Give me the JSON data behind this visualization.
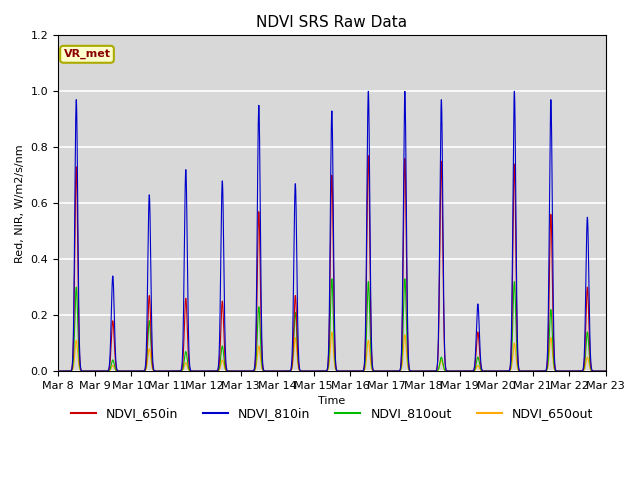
{
  "title": "NDVI SRS Raw Data",
  "ylabel": "Red, NIR, W/m2/s/nm",
  "xlabel": "Time",
  "annotation_text": "VR_met",
  "ylim": [
    0,
    1.2
  ],
  "series": {
    "NDVI_650in": {
      "color": "#cc0000",
      "lw": 0.8
    },
    "NDVI_810in": {
      "color": "#0000cc",
      "lw": 0.8
    },
    "NDVI_810out": {
      "color": "#00bb00",
      "lw": 0.8
    },
    "NDVI_650out": {
      "color": "#ffaa00",
      "lw": 0.8
    }
  },
  "tick_labels": [
    "Mar 8",
    "Mar 9",
    "Mar 10",
    "Mar 11",
    "Mar 12",
    "Mar 13",
    "Mar 14",
    "Mar 15",
    "Mar 16",
    "Mar 17",
    "Mar 18",
    "Mar 19",
    "Mar 20",
    "Mar 21",
    "Mar 22",
    "Mar 23"
  ],
  "background_color": "#d8d8d8",
  "grid_color": "#ffffff",
  "title_fontsize": 11,
  "axis_fontsize": 8,
  "legend_fontsize": 9,
  "peak_810in": [
    0.97,
    0.34,
    0.63,
    0.72,
    0.68,
    0.95,
    0.67,
    0.93,
    1.0,
    1.0,
    0.97,
    0.24,
    1.0,
    0.97,
    0.55
  ],
  "peak_650in": [
    0.73,
    0.18,
    0.27,
    0.26,
    0.25,
    0.57,
    0.27,
    0.7,
    0.77,
    0.76,
    0.75,
    0.14,
    0.74,
    0.56,
    0.3
  ],
  "peak_810out": [
    0.3,
    0.04,
    0.18,
    0.07,
    0.09,
    0.23,
    0.21,
    0.33,
    0.32,
    0.33,
    0.05,
    0.05,
    0.32,
    0.22,
    0.14
  ],
  "peak_650out": [
    0.11,
    0.02,
    0.08,
    0.03,
    0.04,
    0.09,
    0.12,
    0.14,
    0.11,
    0.13,
    0.04,
    0.02,
    0.1,
    0.12,
    0.05
  ]
}
